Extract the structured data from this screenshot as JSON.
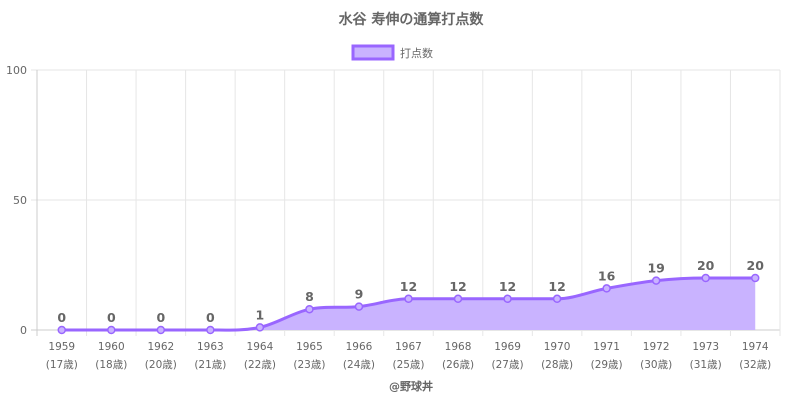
{
  "chart_data": {
    "type": "area",
    "title": "水谷 寿伸の通算打点数",
    "legend": {
      "label": "打点数",
      "placement": "top"
    },
    "categories": [
      "1959",
      "1960",
      "1962",
      "1963",
      "1964",
      "1965",
      "1966",
      "1967",
      "1968",
      "1969",
      "1970",
      "1971",
      "1972",
      "1973",
      "1974"
    ],
    "ages": [
      "(17歳)",
      "(18歳)",
      "(20歳)",
      "(21歳)",
      "(22歳)",
      "(23歳)",
      "(24歳)",
      "(25歳)",
      "(26歳)",
      "(27歳)",
      "(28歳)",
      "(29歳)",
      "(30歳)",
      "(31歳)",
      "(32歳)"
    ],
    "series": [
      {
        "name": "打点数",
        "values": [
          0,
          0,
          0,
          0,
          1,
          8,
          9,
          12,
          12,
          12,
          12,
          16,
          19,
          20,
          20
        ]
      }
    ],
    "ylim": [
      0,
      100
    ],
    "yticks": [
      0,
      50,
      100
    ],
    "grid": true,
    "colors": {
      "line": "#9966ff",
      "fill": "#c9b3ff",
      "grid": "#e6e6e6",
      "axis": "#cccccc",
      "text": "#666666"
    },
    "credit": "@野球丼"
  }
}
